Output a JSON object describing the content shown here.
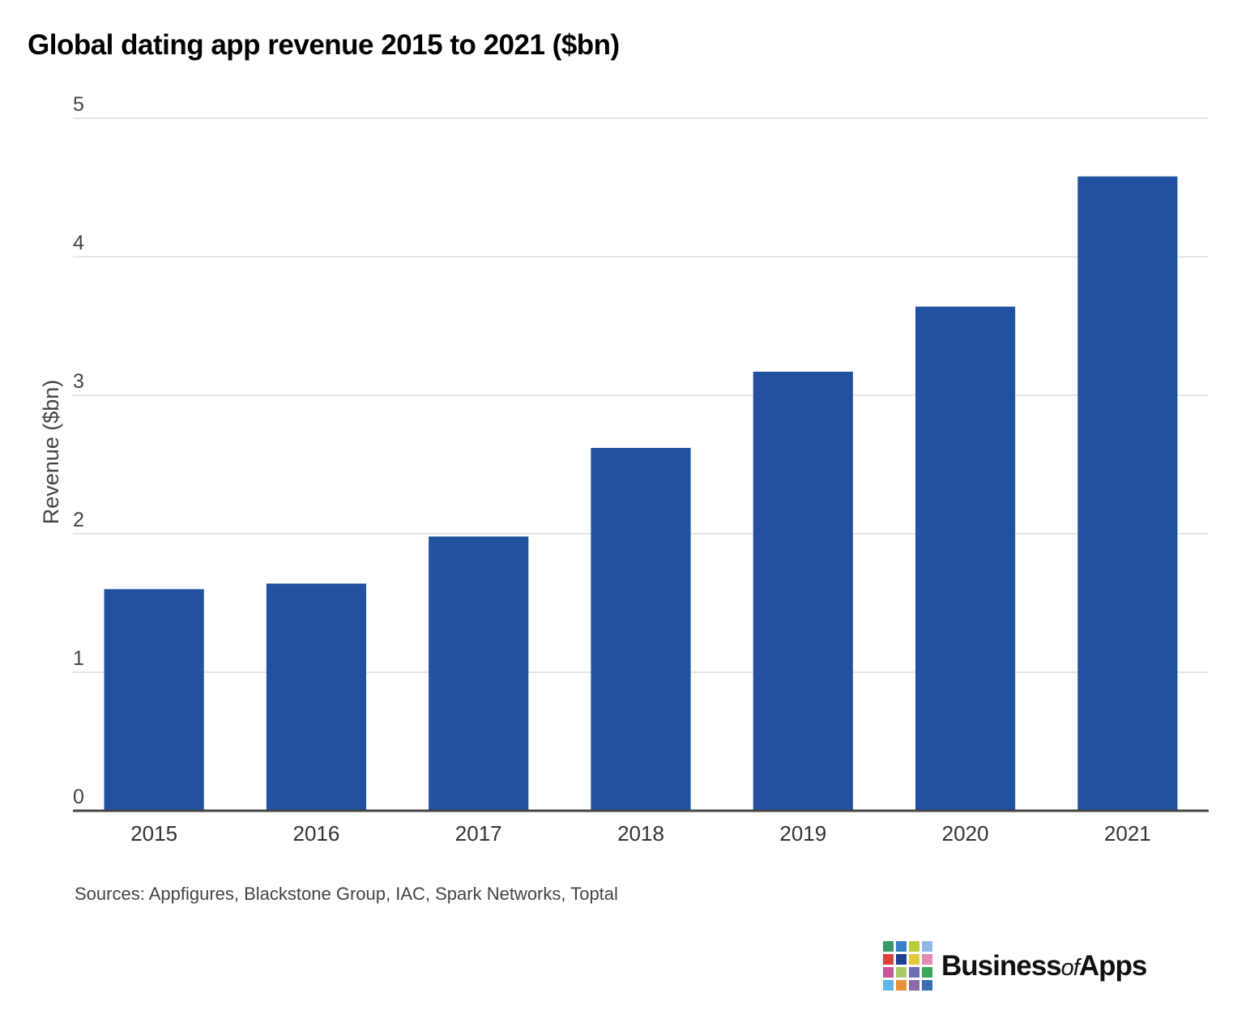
{
  "chart_data": {
    "type": "bar",
    "title": "Global dating app revenue 2015 to 2021 ($bn)",
    "ylabel": "Revenue ($bn)",
    "xlabel": "",
    "categories": [
      "2015",
      "2016",
      "2017",
      "2018",
      "2019",
      "2020",
      "2021"
    ],
    "values": [
      1.6,
      1.64,
      1.98,
      2.62,
      3.17,
      3.64,
      4.58
    ],
    "ylim": [
      0,
      5
    ],
    "yticks": [
      "0",
      "1",
      "2",
      "3",
      "4",
      "5"
    ],
    "grid": true,
    "bar_color": "#22529F"
  },
  "footer": {
    "sources": "Sources: Appfigures, Blackstone Group, IAC, Spark Networks, Toptal"
  },
  "logo": {
    "part1": "Business",
    "part2": "of",
    "part3": "Apps",
    "tile_colors": [
      "#3c9a6a",
      "#3a7fc4",
      "#b9cc3a",
      "#8fb9e6",
      "#d9443a",
      "#1e3f8f",
      "#e8c93a",
      "#e58bb3",
      "#c9569a",
      "#a7c96a",
      "#6b6fb3",
      "#3aa65a",
      "#5fb8e8",
      "#e8923a",
      "#8a6aa8",
      "#3a6fb3"
    ]
  }
}
